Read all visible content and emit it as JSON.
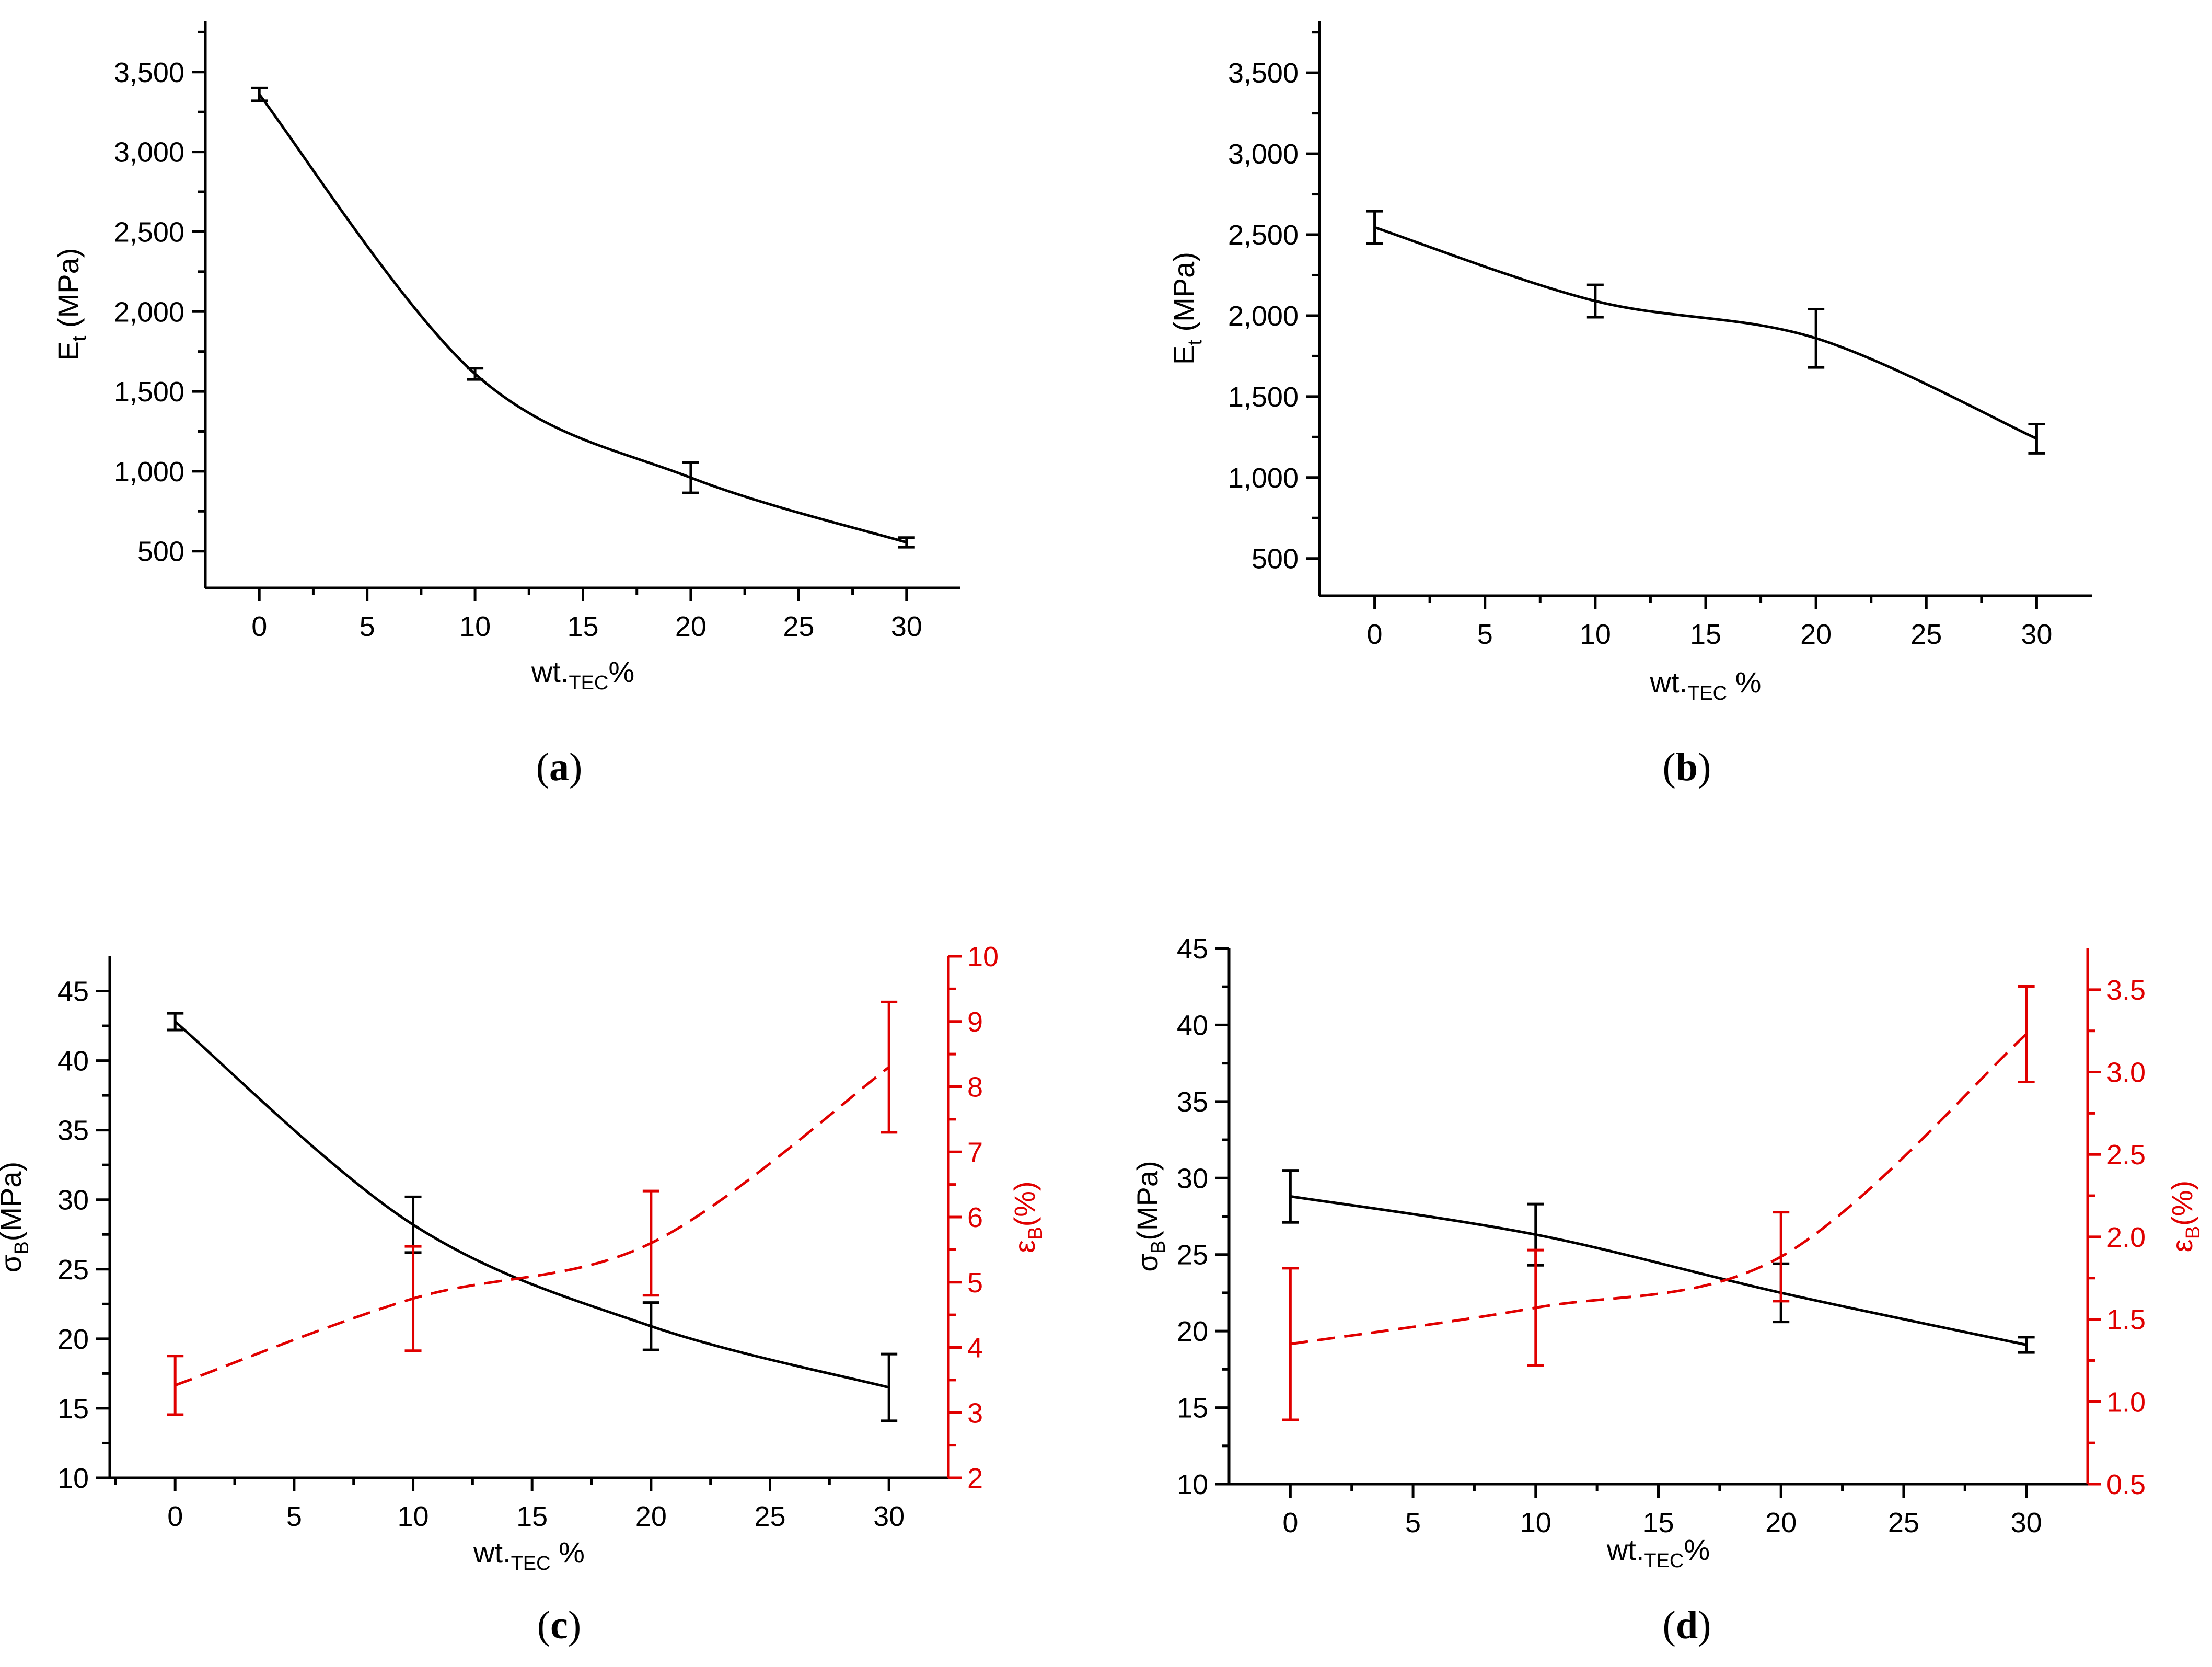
{
  "chart_data": [
    {
      "panel": "a",
      "type": "line",
      "caption_letter": "a",
      "xlabel": {
        "main": "wt.",
        "sub": "TEC",
        "rest": "%"
      },
      "ylabel": {
        "main": "E",
        "sub": "t",
        "rest": " (MPa)"
      },
      "xlim": [
        -2.5,
        32.5
      ],
      "xticks": [
        0,
        5,
        10,
        15,
        20,
        25,
        30
      ],
      "xtick_labels": [
        "0",
        "5",
        "10",
        "15",
        "20",
        "25",
        "30"
      ],
      "ylim": [
        270,
        3820
      ],
      "yticks": [
        500,
        1000,
        1500,
        2000,
        2500,
        3000,
        3500
      ],
      "ytick_labels": [
        "500",
        "1,000",
        "1,500",
        "2,000",
        "2,500",
        "3,000",
        "3,500"
      ],
      "series": [
        {
          "name": "Et",
          "color": "#000000",
          "dashed": false,
          "x": [
            0,
            10,
            20,
            30
          ],
          "y": [
            3360,
            1610,
            960,
            555
          ],
          "err": [
            40,
            35,
            95,
            30
          ]
        }
      ]
    },
    {
      "panel": "b",
      "type": "line",
      "caption_letter": "b",
      "xlabel": {
        "main": "wt.",
        "sub": "TEC",
        "rest": " %"
      },
      "ylabel": {
        "main": "E",
        "sub": "t",
        "rest": " (MPa)"
      },
      "xlim": [
        -2.5,
        32.5
      ],
      "xticks": [
        0,
        5,
        10,
        15,
        20,
        25,
        30
      ],
      "xtick_labels": [
        "0",
        "5",
        "10",
        "15",
        "20",
        "25",
        "30"
      ],
      "ylim": [
        270,
        3820
      ],
      "yticks": [
        500,
        1000,
        1500,
        2000,
        2500,
        3000,
        3500
      ],
      "ytick_labels": [
        "500",
        "1,000",
        "1,500",
        "2,000",
        "2,500",
        "3,000",
        "3,500"
      ],
      "series": [
        {
          "name": "Et",
          "color": "#000000",
          "dashed": false,
          "x": [
            0,
            10,
            20,
            30
          ],
          "y": [
            2545,
            2090,
            1860,
            1240
          ],
          "err": [
            100,
            100,
            180,
            90
          ]
        }
      ]
    },
    {
      "panel": "c",
      "type": "line",
      "caption_letter": "c",
      "xlabel": {
        "main": "wt.",
        "sub": "TEC",
        "rest": " %"
      },
      "ylabel": {
        "main": "σ",
        "sub": "B",
        "rest": "(MPa)"
      },
      "y2label": {
        "main": "ε",
        "sub": "B",
        "rest": "(%)"
      },
      "xlim": [
        -2.75,
        32.5
      ],
      "xticks": [
        0,
        5,
        10,
        15,
        20,
        25,
        30
      ],
      "xtick_labels": [
        "0",
        "5",
        "10",
        "15",
        "20",
        "25",
        "30"
      ],
      "ylim": [
        10,
        47.5
      ],
      "yticks": [
        10,
        15,
        20,
        25,
        30,
        35,
        40,
        45
      ],
      "ytick_labels": [
        "10",
        "15",
        "20",
        "25",
        "30",
        "35",
        "40",
        "45"
      ],
      "y2lim": [
        2,
        10
      ],
      "y2ticks": [
        2,
        3,
        4,
        5,
        6,
        7,
        8,
        9,
        10
      ],
      "y2tick_labels": [
        "2",
        "3",
        "4",
        "5",
        "6",
        "7",
        "8",
        "9",
        "10"
      ],
      "series": [
        {
          "name": "σB",
          "color": "#000000",
          "dashed": false,
          "axis": "left",
          "x": [
            0,
            10,
            20,
            30
          ],
          "y": [
            42.8,
            28.2,
            20.9,
            16.5
          ],
          "err": [
            0.6,
            2.0,
            1.7,
            2.4
          ]
        },
        {
          "name": "εB",
          "color": "#e00000",
          "dashed": true,
          "axis": "right",
          "x": [
            0,
            10,
            20,
            30
          ],
          "y": [
            3.42,
            4.75,
            5.6,
            8.3
          ],
          "err": [
            0.45,
            0.8,
            0.8,
            1.0
          ]
        }
      ]
    },
    {
      "panel": "d",
      "type": "line",
      "caption_letter": "d",
      "xlabel": {
        "main": "wt.",
        "sub": "TEC",
        "rest": "%"
      },
      "ylabel": {
        "main": "σ",
        "sub": "B",
        "rest": "(MPa)"
      },
      "y2label": {
        "main": "ε",
        "sub": "B",
        "rest": "(%)"
      },
      "xlim": [
        -2.5,
        32.5
      ],
      "xticks": [
        0,
        5,
        10,
        15,
        20,
        25,
        30
      ],
      "xtick_labels": [
        "0",
        "5",
        "10",
        "15",
        "20",
        "25",
        "30"
      ],
      "ylim": [
        10,
        45
      ],
      "yticks": [
        10,
        15,
        20,
        25,
        30,
        35,
        40,
        45
      ],
      "ytick_labels": [
        "10",
        "15",
        "20",
        "25",
        "30",
        "35",
        "40",
        "45"
      ],
      "y2lim": [
        0.5,
        3.75
      ],
      "y2ticks": [
        0.5,
        1.0,
        1.5,
        2.0,
        2.5,
        3.0,
        3.5
      ],
      "y2tick_labels": [
        "0.5",
        "1.0",
        "1.5",
        "2.0",
        "2.5",
        "3.0",
        "3.5"
      ],
      "series": [
        {
          "name": "σB",
          "color": "#000000",
          "dashed": false,
          "axis": "left",
          "x": [
            0,
            10,
            20,
            30
          ],
          "y": [
            28.8,
            26.3,
            22.5,
            19.1
          ],
          "err": [
            1.7,
            2.0,
            1.9,
            0.5
          ]
        },
        {
          "name": "εB",
          "color": "#e00000",
          "dashed": true,
          "axis": "right",
          "x": [
            0,
            10,
            20,
            30
          ],
          "y": [
            1.35,
            1.57,
            1.88,
            3.23
          ],
          "err": [
            0.46,
            0.35,
            0.27,
            0.29
          ]
        }
      ]
    }
  ]
}
